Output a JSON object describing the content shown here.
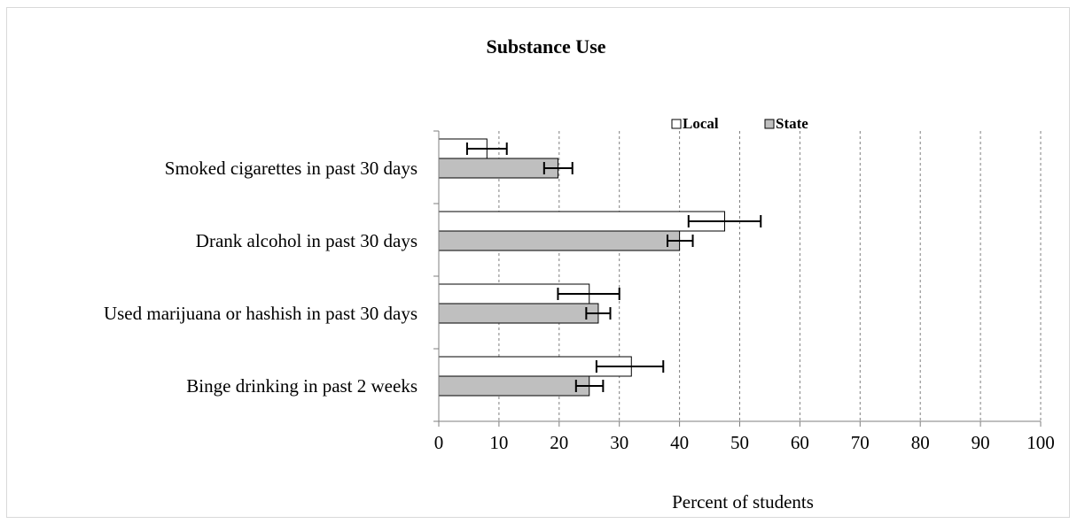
{
  "chart_data": {
    "type": "bar",
    "orientation": "horizontal",
    "title": "Substance Use",
    "xlabel": "Percent of students",
    "ylabel": "",
    "xlim": [
      0,
      100
    ],
    "x_ticks": [
      "0",
      "10",
      "20",
      "30",
      "40",
      "50",
      "60",
      "70",
      "80",
      "90",
      "100"
    ],
    "categories": [
      "Smoked cigarettes in past 30 days",
      "Drank alcohol in past 30 days",
      "Used marijuana or hashish in past 30 days",
      "Binge drinking in past 2 weeks"
    ],
    "series": [
      {
        "name": "Local",
        "color": "#ffffff",
        "values": [
          8,
          47.5,
          25,
          32
        ],
        "error_low": [
          4.7,
          41.5,
          19.8,
          26.2
        ],
        "error_high": [
          11.3,
          53.5,
          30,
          37.3
        ]
      },
      {
        "name": "State",
        "color": "#bfbfbf",
        "values": [
          19.8,
          40,
          26.5,
          25
        ],
        "error_low": [
          17.5,
          38,
          24.5,
          22.8
        ],
        "error_high": [
          22.2,
          42.2,
          28.5,
          27.3
        ]
      }
    ],
    "grid": "vertical dashed",
    "legend_position": "top-right",
    "error_bars": true
  }
}
